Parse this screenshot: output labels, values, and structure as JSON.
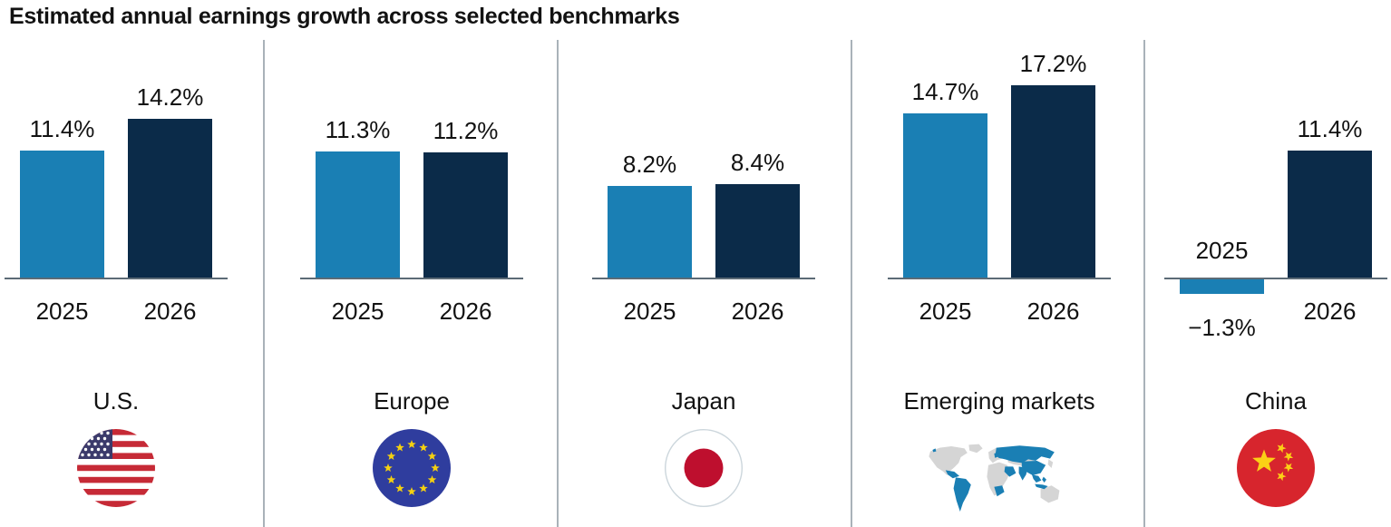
{
  "title": "Estimated annual earnings growth across selected benchmarks",
  "colors": {
    "bar_2025": "#1A7FB4",
    "bar_2026": "#0B2B49",
    "axis": "#5C6B76",
    "divider": "#A9B2B9",
    "map_base": "#D5D5D5",
    "map_highlight": "#1A7FB4"
  },
  "chart_data": {
    "type": "bar",
    "title": "Estimated annual earnings growth across selected benchmarks",
    "categories": [
      "U.S.",
      "Europe",
      "Japan",
      "Emerging markets",
      "China"
    ],
    "series": [
      {
        "name": "2025",
        "values": [
          11.4,
          11.3,
          8.2,
          14.7,
          -1.3
        ]
      },
      {
        "name": "2026",
        "values": [
          14.2,
          11.2,
          8.4,
          17.2,
          11.4
        ]
      }
    ],
    "unit": "%",
    "ylim": [
      -2,
      18
    ],
    "grid": false,
    "legend_position": "none",
    "layout": "small-multiples, one panel per category, data labels above bars, year labels on x-axis"
  },
  "panels": [
    {
      "region": "U.S.",
      "flag_icon": "us-flag-icon",
      "bars": [
        {
          "year": "2025",
          "value": 11.4,
          "label": "11.4%"
        },
        {
          "year": "2026",
          "value": 14.2,
          "label": "14.2%"
        }
      ]
    },
    {
      "region": "Europe",
      "flag_icon": "eu-flag-icon",
      "bars": [
        {
          "year": "2025",
          "value": 11.3,
          "label": "11.3%"
        },
        {
          "year": "2026",
          "value": 11.2,
          "label": "11.2%"
        }
      ]
    },
    {
      "region": "Japan",
      "flag_icon": "japan-flag-icon",
      "bars": [
        {
          "year": "2025",
          "value": 8.2,
          "label": "8.2%"
        },
        {
          "year": "2026",
          "value": 8.4,
          "label": "8.4%"
        }
      ]
    },
    {
      "region": "Emerging markets",
      "flag_icon": "world-map-icon",
      "bars": [
        {
          "year": "2025",
          "value": 14.7,
          "label": "14.7%"
        },
        {
          "year": "2026",
          "value": 17.2,
          "label": "17.2%"
        }
      ]
    },
    {
      "region": "China",
      "flag_icon": "china-flag-icon",
      "bars": [
        {
          "year": "2025",
          "value": -1.3,
          "label": "−1.3%"
        },
        {
          "year": "2026",
          "value": 11.4,
          "label": "11.4%"
        }
      ]
    }
  ]
}
